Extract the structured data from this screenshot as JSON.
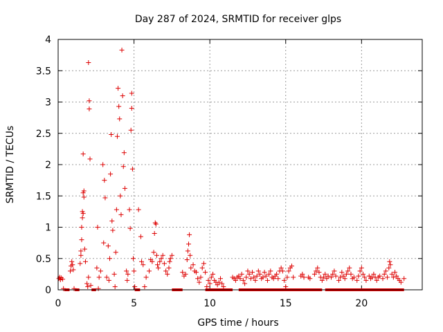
{
  "chart_data": {
    "type": "scatter",
    "title": "Day 287 of 2024, SRMTID for receiver glps",
    "xlabel": "GPS time / hours",
    "ylabel": "SRMTID / TECUs",
    "xlim": [
      0,
      24
    ],
    "ylim": [
      0,
      4
    ],
    "xticks": [
      0,
      5,
      10,
      15,
      20
    ],
    "yticks": [
      0,
      0.5,
      1,
      1.5,
      2,
      2.5,
      3,
      3.5,
      4
    ],
    "xtick_labels": [
      "0",
      "5",
      "10",
      "15",
      "20"
    ],
    "ytick_labels": [
      "0",
      "0.5",
      "1",
      "1.5",
      "2",
      "2.5",
      "3",
      "3.5",
      "4"
    ],
    "grid": true,
    "legend": "none",
    "marker": "plus",
    "color": "#dd0000",
    "series": [
      {
        "name": "SRMTID",
        "points": [
          [
            0.05,
            0.18
          ],
          [
            0.1,
            0.2
          ],
          [
            0.15,
            0.16
          ],
          [
            0.2,
            0.19
          ],
          [
            0.3,
            0.17
          ],
          [
            0.35,
            0.02
          ],
          [
            0.8,
            0.3
          ],
          [
            0.85,
            0.38
          ],
          [
            0.9,
            0.45
          ],
          [
            0.95,
            0.4
          ],
          [
            1.0,
            0.32
          ],
          [
            1.05,
            0.02
          ],
          [
            1.45,
            0.42
          ],
          [
            1.5,
            0.55
          ],
          [
            1.5,
            0.62
          ],
          [
            1.55,
            0.8
          ],
          [
            1.55,
            1.0
          ],
          [
            1.6,
            1.15
          ],
          [
            1.6,
            1.25
          ],
          [
            1.65,
            1.22
          ],
          [
            1.65,
            1.55
          ],
          [
            1.7,
            1.58
          ],
          [
            1.7,
            1.48
          ],
          [
            1.75,
            0.65
          ],
          [
            1.8,
            0.45
          ],
          [
            1.65,
            2.17
          ],
          [
            1.9,
            0.1
          ],
          [
            1.95,
            0.05
          ],
          [
            2.0,
            0.2
          ],
          [
            2.0,
            3.63
          ],
          [
            2.05,
            3.02
          ],
          [
            2.05,
            2.89
          ],
          [
            2.1,
            2.09
          ],
          [
            2.15,
            0.07
          ],
          [
            2.55,
            0.35
          ],
          [
            2.6,
            1.0
          ],
          [
            2.65,
            0.02
          ],
          [
            2.7,
            0.2
          ],
          [
            2.8,
            0.3
          ],
          [
            2.95,
            2.0
          ],
          [
            3.0,
            0.75
          ],
          [
            3.05,
            1.75
          ],
          [
            3.1,
            1.47
          ],
          [
            3.2,
            0.2
          ],
          [
            3.3,
            0.7
          ],
          [
            3.35,
            0.15
          ],
          [
            3.4,
            0.5
          ],
          [
            3.45,
            1.85
          ],
          [
            3.5,
            2.48
          ],
          [
            3.55,
            1.1
          ],
          [
            3.6,
            0.95
          ],
          [
            3.7,
            0.25
          ],
          [
            3.75,
            0.05
          ],
          [
            3.8,
            0.6
          ],
          [
            3.85,
            1.28
          ],
          [
            3.9,
            2.45
          ],
          [
            3.95,
            3.22
          ],
          [
            4.0,
            2.93
          ],
          [
            4.05,
            2.73
          ],
          [
            4.1,
            1.5
          ],
          [
            4.15,
            1.2
          ],
          [
            4.2,
            3.83
          ],
          [
            4.25,
            3.1
          ],
          [
            4.3,
            1.97
          ],
          [
            4.35,
            2.19
          ],
          [
            4.4,
            1.62
          ],
          [
            4.5,
            0.3
          ],
          [
            4.55,
            0.15
          ],
          [
            4.6,
            0.25
          ],
          [
            4.7,
            1.28
          ],
          [
            4.75,
            0.98
          ],
          [
            4.8,
            2.55
          ],
          [
            4.85,
            3.14
          ],
          [
            4.85,
            2.9
          ],
          [
            4.9,
            1.93
          ],
          [
            4.95,
            0.5
          ],
          [
            5.0,
            0.3
          ],
          [
            5.05,
            0.05
          ],
          [
            5.3,
            1.28
          ],
          [
            5.45,
            0.85
          ],
          [
            5.5,
            0.45
          ],
          [
            5.6,
            0.4
          ],
          [
            5.7,
            0.05
          ],
          [
            5.8,
            0.2
          ],
          [
            6.0,
            0.3
          ],
          [
            6.1,
            0.48
          ],
          [
            6.2,
            0.45
          ],
          [
            6.3,
            0.6
          ],
          [
            6.35,
            0.9
          ],
          [
            6.4,
            1.07
          ],
          [
            6.45,
            1.05
          ],
          [
            6.5,
            0.55
          ],
          [
            6.55,
            0.4
          ],
          [
            6.6,
            0.35
          ],
          [
            6.7,
            0.45
          ],
          [
            6.8,
            0.5
          ],
          [
            6.9,
            0.55
          ],
          [
            7.0,
            0.42
          ],
          [
            7.1,
            0.3
          ],
          [
            7.2,
            0.25
          ],
          [
            7.3,
            0.35
          ],
          [
            7.35,
            0.45
          ],
          [
            7.4,
            0.5
          ],
          [
            7.5,
            0.55
          ],
          [
            8.2,
            0.28
          ],
          [
            8.3,
            0.22
          ],
          [
            8.4,
            0.25
          ],
          [
            8.5,
            0.48
          ],
          [
            8.55,
            0.62
          ],
          [
            8.6,
            0.73
          ],
          [
            8.65,
            0.88
          ],
          [
            8.7,
            0.55
          ],
          [
            8.75,
            0.35
          ],
          [
            8.9,
            0.4
          ],
          [
            9.0,
            0.3
          ],
          [
            9.1,
            0.28
          ],
          [
            9.2,
            0.18
          ],
          [
            9.3,
            0.12
          ],
          [
            9.4,
            0.2
          ],
          [
            9.5,
            0.35
          ],
          [
            9.6,
            0.42
          ],
          [
            9.7,
            0.28
          ],
          [
            9.8,
            0.05
          ],
          [
            9.9,
            0.15
          ],
          [
            10.0,
            0.1
          ],
          [
            10.1,
            0.2
          ],
          [
            10.2,
            0.25
          ],
          [
            10.3,
            0.15
          ],
          [
            10.4,
            0.12
          ],
          [
            10.5,
            0.08
          ],
          [
            10.6,
            0.12
          ],
          [
            10.7,
            0.18
          ],
          [
            10.8,
            0.1
          ],
          [
            10.9,
            0.05
          ],
          [
            11.5,
            0.2
          ],
          [
            11.6,
            0.18
          ],
          [
            11.7,
            0.15
          ],
          [
            11.8,
            0.2
          ],
          [
            11.9,
            0.22
          ],
          [
            12.0,
            0.18
          ],
          [
            12.1,
            0.25
          ],
          [
            12.2,
            0.15
          ],
          [
            12.3,
            0.1
          ],
          [
            12.4,
            0.2
          ],
          [
            12.5,
            0.3
          ],
          [
            12.6,
            0.25
          ],
          [
            12.7,
            0.18
          ],
          [
            12.8,
            0.28
          ],
          [
            12.9,
            0.2
          ],
          [
            13.0,
            0.15
          ],
          [
            13.1,
            0.22
          ],
          [
            13.2,
            0.3
          ],
          [
            13.3,
            0.25
          ],
          [
            13.4,
            0.18
          ],
          [
            13.5,
            0.2
          ],
          [
            13.6,
            0.28
          ],
          [
            13.7,
            0.22
          ],
          [
            13.8,
            0.15
          ],
          [
            13.9,
            0.25
          ],
          [
            14.0,
            0.3
          ],
          [
            14.1,
            0.2
          ],
          [
            14.2,
            0.18
          ],
          [
            14.3,
            0.22
          ],
          [
            14.4,
            0.25
          ],
          [
            14.5,
            0.18
          ],
          [
            14.6,
            0.3
          ],
          [
            14.7,
            0.35
          ],
          [
            14.8,
            0.3
          ],
          [
            14.9,
            0.15
          ],
          [
            15.0,
            0.05
          ],
          [
            15.1,
            0.2
          ],
          [
            15.2,
            0.3
          ],
          [
            15.3,
            0.35
          ],
          [
            15.4,
            0.38
          ],
          [
            15.5,
            0.2
          ],
          [
            16.0,
            0.22
          ],
          [
            16.1,
            0.25
          ],
          [
            16.2,
            0.2
          ],
          [
            16.5,
            0.2
          ],
          [
            16.6,
            0.18
          ],
          [
            16.9,
            0.25
          ],
          [
            17.0,
            0.3
          ],
          [
            17.1,
            0.35
          ],
          [
            17.2,
            0.28
          ],
          [
            17.3,
            0.2
          ],
          [
            17.4,
            0.15
          ],
          [
            17.5,
            0.2
          ],
          [
            17.6,
            0.25
          ],
          [
            17.7,
            0.18
          ],
          [
            17.8,
            0.22
          ],
          [
            18.0,
            0.2
          ],
          [
            18.1,
            0.25
          ],
          [
            18.2,
            0.3
          ],
          [
            18.3,
            0.22
          ],
          [
            18.5,
            0.15
          ],
          [
            18.6,
            0.2
          ],
          [
            18.7,
            0.28
          ],
          [
            18.8,
            0.22
          ],
          [
            18.9,
            0.18
          ],
          [
            19.0,
            0.25
          ],
          [
            19.1,
            0.3
          ],
          [
            19.2,
            0.35
          ],
          [
            19.3,
            0.25
          ],
          [
            19.4,
            0.18
          ],
          [
            19.5,
            0.2
          ],
          [
            19.7,
            0.15
          ],
          [
            19.8,
            0.22
          ],
          [
            19.9,
            0.3
          ],
          [
            20.0,
            0.35
          ],
          [
            20.1,
            0.25
          ],
          [
            20.2,
            0.2
          ],
          [
            20.3,
            0.15
          ],
          [
            20.5,
            0.22
          ],
          [
            20.6,
            0.18
          ],
          [
            20.7,
            0.2
          ],
          [
            20.8,
            0.25
          ],
          [
            20.9,
            0.2
          ],
          [
            21.0,
            0.15
          ],
          [
            21.1,
            0.2
          ],
          [
            21.2,
            0.22
          ],
          [
            21.4,
            0.18
          ],
          [
            21.5,
            0.25
          ],
          [
            21.6,
            0.3
          ],
          [
            21.7,
            0.2
          ],
          [
            21.8,
            0.35
          ],
          [
            21.85,
            0.45
          ],
          [
            21.9,
            0.4
          ],
          [
            22.0,
            0.25
          ],
          [
            22.1,
            0.2
          ],
          [
            22.2,
            0.28
          ],
          [
            22.3,
            0.22
          ],
          [
            22.4,
            0.18
          ],
          [
            22.5,
            0.15
          ],
          [
            22.6,
            0.12
          ],
          [
            22.8,
            0.18
          ]
        ],
        "zero_runs": [
          [
            0.4,
            0.75
          ],
          [
            1.1,
            1.4
          ],
          [
            2.2,
            2.5
          ],
          [
            5.05,
            5.4
          ],
          [
            7.5,
            8.2
          ],
          [
            9.7,
            11.5
          ],
          [
            11.9,
            17.4
          ],
          [
            17.6,
            22.8
          ]
        ]
      }
    ]
  }
}
